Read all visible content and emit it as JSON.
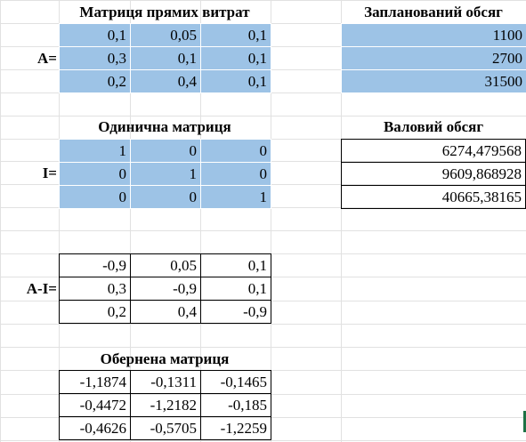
{
  "direct_cost_matrix": {
    "title": "Матриця прямих витрат",
    "label": "A=",
    "rows": [
      [
        "0,1",
        "0,05",
        "0,1"
      ],
      [
        "0,3",
        "0,1",
        "0,1"
      ],
      [
        "0,2",
        "0,4",
        "0,1"
      ]
    ]
  },
  "planned_volume": {
    "title": "Запланований обсяг",
    "values": [
      "1100",
      "2700",
      "31500"
    ]
  },
  "identity_matrix": {
    "title": "Одинична матриця",
    "label": "I=",
    "rows": [
      [
        "1",
        "0",
        "0"
      ],
      [
        "0",
        "1",
        "0"
      ],
      [
        "0",
        "0",
        "1"
      ]
    ]
  },
  "gross_volume": {
    "title": "Валовий обсяг",
    "values": [
      "6274,479568",
      "9609,868928",
      "40665,38165"
    ]
  },
  "a_minus_i": {
    "label": "A-I=",
    "rows": [
      [
        "-0,9",
        "0,05",
        "0,1"
      ],
      [
        "0,3",
        "-0,9",
        "0,1"
      ],
      [
        "0,2",
        "0,4",
        "-0,9"
      ]
    ]
  },
  "inverse_matrix": {
    "title": "Обернена матриця",
    "rows": [
      [
        "-1,1874",
        "-0,1311",
        "-0,1465"
      ],
      [
        "-0,4472",
        "-1,2182",
        "-0,185"
      ],
      [
        "-0,4626",
        "-0,5705",
        "-1,2259"
      ]
    ]
  },
  "colors": {
    "fill": "#9dc3e6",
    "gridline": "#e1e1e1",
    "selection": "#1e7145"
  }
}
